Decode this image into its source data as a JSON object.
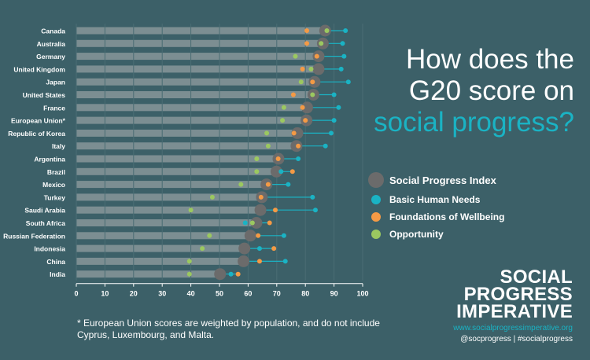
{
  "title": {
    "line1": "How does the",
    "line2": "G20 score on",
    "line3": "social progress?"
  },
  "colors": {
    "background": "#3c6068",
    "bar": "#7c8e92",
    "spi": "#6b6b6b",
    "basic_human_needs": "#1ab3c4",
    "foundations_of_wellbeing": "#f49a45",
    "opportunity": "#9bc860"
  },
  "legend": [
    {
      "key": "spi",
      "label": "Social Progress Index",
      "color": "#6b6b6b"
    },
    {
      "key": "bhn",
      "label": "Basic Human Needs",
      "color": "#1ab3c4"
    },
    {
      "key": "fow",
      "label": "Foundations of Wellbeing",
      "color": "#f49a45"
    },
    {
      "key": "opp",
      "label": "Opportunity",
      "color": "#9bc860"
    }
  ],
  "footnote": "* European Union scores are weighted by population, and do not include Cyprus, Luxembourg, and Malta.",
  "brand": {
    "line1": "SOCIAL",
    "line2": "PROGRESS",
    "line3": "IMPERATIVE",
    "url": "www.socialprogressimperative.org",
    "social": "@socprogress  |  #socialprogress"
  },
  "chart_data": {
    "type": "scatter",
    "xlim": [
      0,
      100
    ],
    "xticks": [
      0,
      10,
      20,
      30,
      40,
      50,
      60,
      70,
      80,
      90,
      100
    ],
    "categories": [
      "Canada",
      "Australia",
      "Germany",
      "United Kingdom",
      "Japan",
      "United States",
      "France",
      "European Union*",
      "Republic of Korea",
      "Italy",
      "Argentina",
      "Brazil",
      "Mexico",
      "Turkey",
      "Saudi Arabia",
      "South Africa",
      "Russian Federation",
      "Indonesia",
      "China",
      "India"
    ],
    "series": [
      {
        "name": "Social Progress Index",
        "key": "spi",
        "values": [
          86.9,
          86.1,
          84.6,
          84.6,
          83.2,
          82.8,
          80.6,
          80.4,
          77.2,
          76.9,
          70.6,
          69.9,
          66.4,
          64.8,
          64.3,
          62.9,
          60.8,
          58.7,
          58.4,
          50.2
        ]
      },
      {
        "name": "Basic Human Needs",
        "key": "bhn",
        "values": [
          94.0,
          93.0,
          93.5,
          92.5,
          95.0,
          90.0,
          91.6,
          90.0,
          89.0,
          87.0,
          77.5,
          71.5,
          74.0,
          82.5,
          83.5,
          59.0,
          72.5,
          64.0,
          73.0,
          54.0
        ]
      },
      {
        "name": "Foundations of Wellbeing",
        "key": "fow",
        "values": [
          80.5,
          80.5,
          84.0,
          79.0,
          82.5,
          75.8,
          79.0,
          80.0,
          76.0,
          77.5,
          70.5,
          75.5,
          67.0,
          64.5,
          69.5,
          67.5,
          63.5,
          69.0,
          64.0,
          56.5
        ]
      },
      {
        "name": "Opportunity",
        "key": "opp",
        "values": [
          87.5,
          85.5,
          76.5,
          82.0,
          78.5,
          82.5,
          72.5,
          72.0,
          66.5,
          67.0,
          63.0,
          63.0,
          57.5,
          47.5,
          40.0,
          61.5,
          46.5,
          44.0,
          39.5,
          39.5
        ]
      }
    ]
  }
}
